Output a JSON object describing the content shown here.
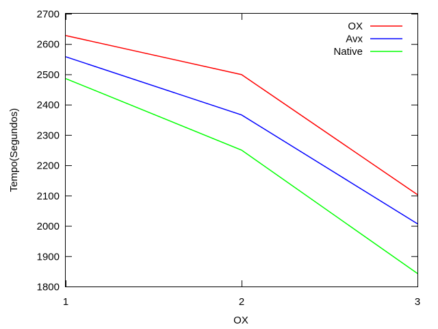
{
  "chart_data": {
    "type": "line",
    "x": [
      1,
      2,
      3
    ],
    "x_ticks": [
      "1",
      "2",
      "3"
    ],
    "y_ticks": [
      "1800",
      "1900",
      "2000",
      "2100",
      "2200",
      "2300",
      "2400",
      "2500",
      "2600",
      "2700"
    ],
    "xlim": [
      1,
      3
    ],
    "ylim": [
      1800,
      2700
    ],
    "xlabel": "OX",
    "ylabel": "Tempo(Segundos)",
    "grid": false,
    "legend_position": "top-right",
    "series": [
      {
        "name": "OX",
        "color": "#ff0000",
        "values": [
          2628,
          2499,
          2103
        ]
      },
      {
        "name": "Avx",
        "color": "#0000ff",
        "values": [
          2558,
          2366,
          2007
        ]
      },
      {
        "name": "Native",
        "color": "#00ff00",
        "values": [
          2486,
          2250,
          1843
        ]
      }
    ]
  }
}
